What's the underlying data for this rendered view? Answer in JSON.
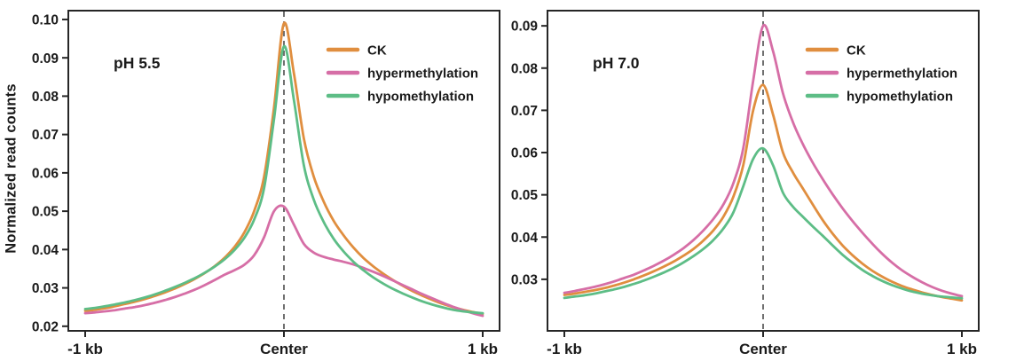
{
  "y_axis_title": "Normalized read counts",
  "colors": {
    "ck": "#E08E3F",
    "hypermethylation": "#D66EA6",
    "hypomethylation": "#5DBD86",
    "axis": "#262626",
    "text": "#1a1a1a",
    "center_line": "#4d4d4d",
    "background": "#ffffff"
  },
  "chart_data": [
    {
      "type": "line",
      "panel_label": "pH 5.5",
      "xlabel": "",
      "ylabel": "Normalized read counts",
      "xlim": [
        -1,
        1
      ],
      "ylim": [
        0.0188,
        0.1023
      ],
      "grid": false,
      "legend_position": "upper-right",
      "center_dashed_line": true,
      "x_ticks": [
        {
          "pos": -1,
          "label": "-1 kb"
        },
        {
          "pos": 0,
          "label": "Center"
        },
        {
          "pos": 1,
          "label": "1 kb"
        }
      ],
      "y_ticks": [
        "0.02",
        "0.03",
        "0.04",
        "0.05",
        "0.06",
        "0.07",
        "0.08",
        "0.09",
        "0.10"
      ],
      "x": [
        -1,
        -0.95,
        -0.9,
        -0.85,
        -0.8,
        -0.75,
        -0.7,
        -0.65,
        -0.6,
        -0.55,
        -0.5,
        -0.45,
        -0.4,
        -0.35,
        -0.3,
        -0.25,
        -0.2,
        -0.15,
        -0.1,
        -0.05,
        0,
        0.05,
        0.1,
        0.15,
        0.2,
        0.25,
        0.3,
        0.35,
        0.4,
        0.45,
        0.5,
        0.55,
        0.6,
        0.65,
        0.7,
        0.75,
        0.8,
        0.85,
        0.9,
        0.95,
        1
      ],
      "series": [
        {
          "name": "CK",
          "color": "#E08E3F",
          "values": [
            0.024,
            0.0243,
            0.0247,
            0.0252,
            0.0258,
            0.0264,
            0.0271,
            0.0279,
            0.0288,
            0.0298,
            0.031,
            0.0323,
            0.0338,
            0.0356,
            0.0378,
            0.0406,
            0.0444,
            0.05,
            0.059,
            0.077,
            0.099,
            0.086,
            0.069,
            0.059,
            0.0525,
            0.0475,
            0.0437,
            0.0405,
            0.0378,
            0.0356,
            0.0337,
            0.032,
            0.0305,
            0.0291,
            0.0279,
            0.0268,
            0.0258,
            0.025,
            0.0243,
            0.0237,
            0.0232
          ]
        },
        {
          "name": "hypermethylation",
          "color": "#D66EA6",
          "values": [
            0.0234,
            0.0236,
            0.0239,
            0.0242,
            0.0246,
            0.025,
            0.0255,
            0.0261,
            0.0268,
            0.0276,
            0.0285,
            0.0295,
            0.0307,
            0.032,
            0.0334,
            0.0346,
            0.036,
            0.0385,
            0.0432,
            0.05,
            0.0512,
            0.0465,
            0.0415,
            0.0392,
            0.0381,
            0.0374,
            0.0368,
            0.0361,
            0.0352,
            0.0342,
            0.0331,
            0.0319,
            0.0307,
            0.0295,
            0.0283,
            0.0272,
            0.0261,
            0.0251,
            0.0242,
            0.0234,
            0.0227
          ]
        },
        {
          "name": "hypomethylation",
          "color": "#5DBD86",
          "values": [
            0.0245,
            0.0248,
            0.0252,
            0.0257,
            0.0262,
            0.0268,
            0.0275,
            0.0283,
            0.0292,
            0.0302,
            0.0313,
            0.0325,
            0.0339,
            0.0355,
            0.0374,
            0.0398,
            0.043,
            0.0478,
            0.056,
            0.074,
            0.093,
            0.079,
            0.062,
            0.053,
            0.0472,
            0.0428,
            0.0395,
            0.0368,
            0.0346,
            0.0327,
            0.0311,
            0.0297,
            0.0285,
            0.0274,
            0.0264,
            0.0256,
            0.0249,
            0.0243,
            0.0239,
            0.0236,
            0.0234
          ]
        }
      ]
    },
    {
      "type": "line",
      "panel_label": "pH 7.0",
      "xlabel": "",
      "ylabel": "Normalized read counts",
      "xlim": [
        -1,
        1
      ],
      "ylim": [
        0.0178,
        0.0936
      ],
      "grid": false,
      "legend_position": "upper-right",
      "center_dashed_line": true,
      "x_ticks": [
        {
          "pos": -1,
          "label": "-1 kb"
        },
        {
          "pos": 0,
          "label": "Center"
        },
        {
          "pos": 1,
          "label": "1 kb"
        }
      ],
      "y_ticks": [
        "0.03",
        "0.04",
        "0.05",
        "0.06",
        "0.07",
        "0.08",
        "0.09"
      ],
      "x": [
        -1,
        -0.95,
        -0.9,
        -0.85,
        -0.8,
        -0.75,
        -0.7,
        -0.65,
        -0.6,
        -0.55,
        -0.5,
        -0.45,
        -0.4,
        -0.35,
        -0.3,
        -0.25,
        -0.2,
        -0.15,
        -0.1,
        -0.05,
        0,
        0.05,
        0.1,
        0.15,
        0.2,
        0.25,
        0.3,
        0.35,
        0.4,
        0.45,
        0.5,
        0.55,
        0.6,
        0.65,
        0.7,
        0.75,
        0.8,
        0.85,
        0.9,
        0.95,
        1
      ],
      "series": [
        {
          "name": "CK",
          "color": "#E08E3F",
          "values": [
            0.0263,
            0.0266,
            0.027,
            0.0274,
            0.0279,
            0.0285,
            0.0292,
            0.03,
            0.0309,
            0.0319,
            0.033,
            0.0342,
            0.0356,
            0.0372,
            0.0392,
            0.0416,
            0.0448,
            0.0495,
            0.057,
            0.07,
            0.076,
            0.069,
            0.06,
            0.0553,
            0.0515,
            0.0477,
            0.044,
            0.0408,
            0.038,
            0.0357,
            0.0337,
            0.032,
            0.0306,
            0.0294,
            0.0284,
            0.0276,
            0.0269,
            0.0263,
            0.0258,
            0.0254,
            0.025
          ]
        },
        {
          "name": "hypermethylation",
          "color": "#D66EA6",
          "values": [
            0.0268,
            0.0272,
            0.0277,
            0.0282,
            0.0288,
            0.0295,
            0.0303,
            0.0311,
            0.0321,
            0.0332,
            0.0344,
            0.0358,
            0.0374,
            0.0393,
            0.0416,
            0.0443,
            0.0477,
            0.0527,
            0.061,
            0.077,
            0.09,
            0.084,
            0.074,
            0.0672,
            0.062,
            0.0576,
            0.0537,
            0.0501,
            0.0468,
            0.0438,
            0.041,
            0.0384,
            0.036,
            0.0339,
            0.0321,
            0.0306,
            0.0293,
            0.0282,
            0.0273,
            0.0266,
            0.026
          ]
        },
        {
          "name": "hypomethylation",
          "color": "#5DBD86",
          "values": [
            0.0256,
            0.0259,
            0.0262,
            0.0266,
            0.0271,
            0.0276,
            0.0282,
            0.0289,
            0.0297,
            0.0306,
            0.0316,
            0.0327,
            0.034,
            0.0355,
            0.0372,
            0.0393,
            0.042,
            0.0458,
            0.052,
            0.0585,
            0.061,
            0.057,
            0.0505,
            0.0472,
            0.0448,
            0.0425,
            0.0403,
            0.038,
            0.0358,
            0.0339,
            0.0322,
            0.0308,
            0.0296,
            0.0286,
            0.0278,
            0.0271,
            0.0266,
            0.0262,
            0.0259,
            0.0257,
            0.0255
          ]
        }
      ]
    }
  ]
}
